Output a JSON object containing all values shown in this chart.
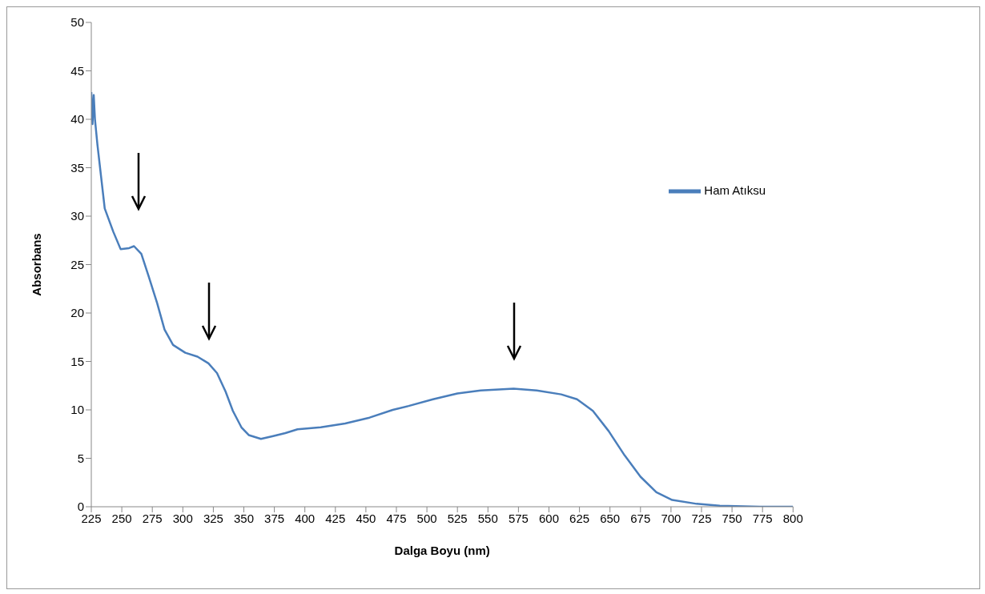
{
  "chart_data": {
    "type": "line",
    "xlabel": "Dalga Boyu (nm)",
    "ylabel": "Absorbans",
    "legend": "right",
    "grid": false,
    "marker": "none",
    "line_style": "solid",
    "xlim": [
      225,
      800
    ],
    "xticks": [
      225,
      250,
      275,
      300,
      325,
      350,
      375,
      400,
      425,
      450,
      475,
      500,
      525,
      550,
      575,
      600,
      625,
      650,
      675,
      700,
      725,
      750,
      775,
      800
    ],
    "ylim": [
      0,
      50
    ],
    "yticks": [
      0,
      5,
      10,
      15,
      20,
      25,
      30,
      35,
      40,
      45,
      50
    ],
    "x": [
      225,
      226,
      227,
      228,
      230,
      233,
      236,
      243,
      249,
      256,
      260,
      266,
      272,
      279,
      285,
      292,
      302,
      312,
      321,
      328,
      335,
      341,
      348,
      354,
      364,
      374,
      384,
      394,
      413,
      433,
      453,
      472,
      485,
      505,
      525,
      544,
      571,
      590,
      610,
      623,
      636,
      649,
      662,
      675,
      688,
      701,
      721,
      740,
      773,
      800
    ],
    "series": [
      {
        "name": "Ham Atıksu",
        "color": "#4a7ebb",
        "values": [
          42.8,
          39.5,
          42.5,
          40,
          37.4,
          34.1,
          30.8,
          28.4,
          26.6,
          26.7,
          26.9,
          26.1,
          23.8,
          21,
          18.3,
          16.7,
          15.9,
          15.5,
          14.8,
          13.8,
          11.9,
          9.9,
          8.2,
          7.4,
          7.0,
          7.3,
          7.6,
          8.0,
          8.2,
          8.6,
          9.2,
          10.0,
          10.4,
          11.1,
          11.7,
          12.0,
          12.2,
          12.0,
          11.6,
          11.1,
          9.9,
          7.8,
          5.3,
          3.1,
          1.5,
          0.7,
          0.3,
          0.1,
          0,
          0
        ]
      }
    ]
  }
}
